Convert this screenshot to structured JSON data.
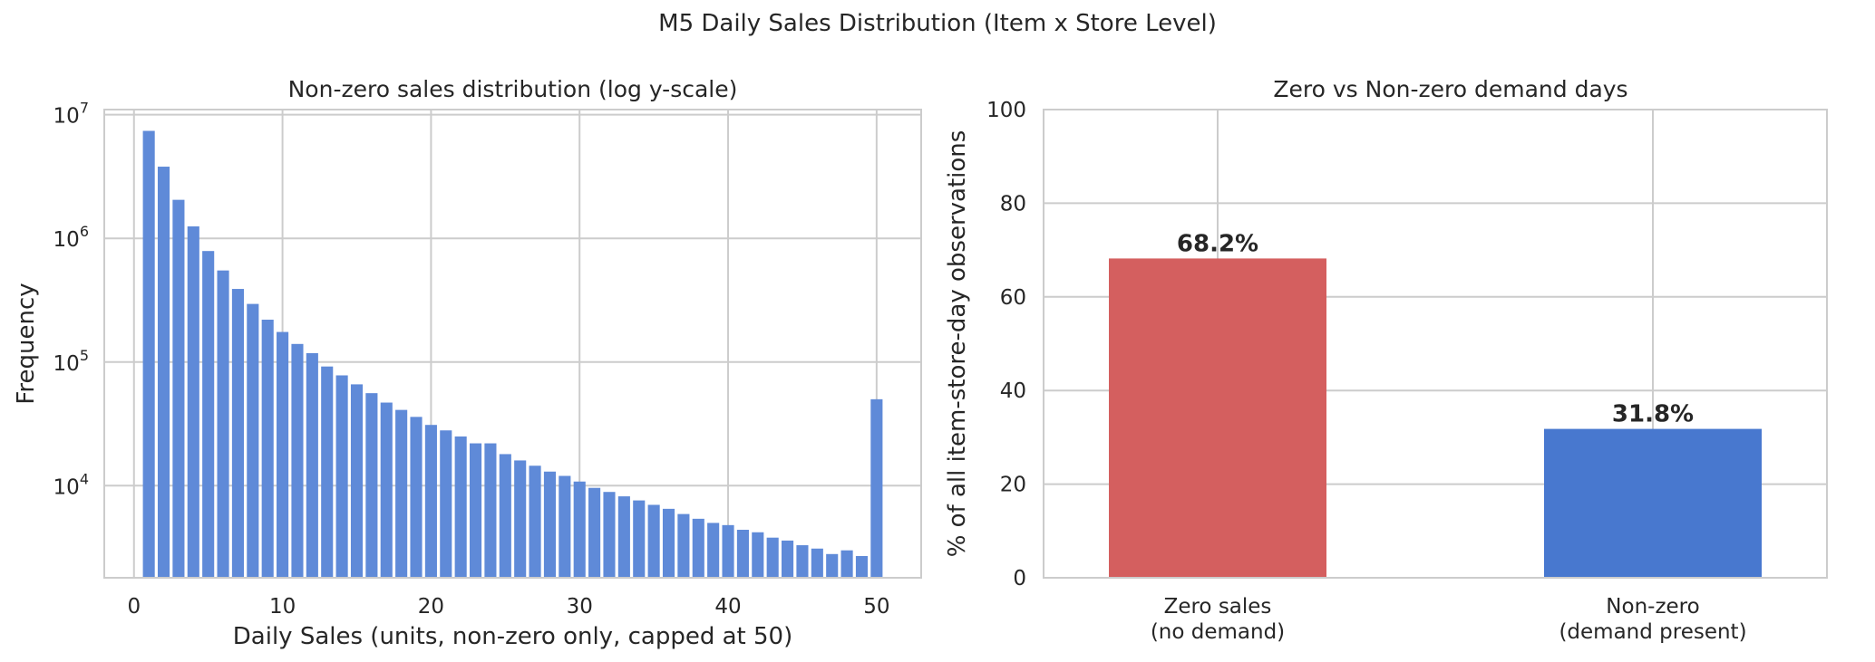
{
  "figure": {
    "title": "M5 Daily Sales Distribution (Item x Store Level)"
  },
  "chart_data": [
    {
      "type": "bar",
      "title": "Non-zero sales distribution (log y-scale)",
      "xlabel": "Daily Sales (units, non-zero only, capped at 50)",
      "ylabel": "Frequency",
      "yscale": "log",
      "xlim": [
        -2,
        53
      ],
      "ylim": [
        1800,
        11000000
      ],
      "xticks": [
        0,
        10,
        20,
        30,
        40,
        50
      ],
      "xtick_labels": [
        "0",
        "10",
        "20",
        "30",
        "40",
        "50"
      ],
      "yticks": [
        10000,
        100000,
        1000000,
        10000000
      ],
      "ytick_labels": [
        {
          "base": "10",
          "exp": "4"
        },
        {
          "base": "10",
          "exp": "5"
        },
        {
          "base": "10",
          "exp": "6"
        },
        {
          "base": "10",
          "exp": "7"
        }
      ],
      "grid": true,
      "color": "#5f8ad8",
      "x": [
        1,
        2,
        3,
        4,
        5,
        6,
        7,
        8,
        9,
        10,
        11,
        12,
        13,
        14,
        15,
        16,
        17,
        18,
        19,
        20,
        21,
        22,
        23,
        24,
        25,
        26,
        27,
        28,
        29,
        30,
        31,
        32,
        33,
        34,
        35,
        36,
        37,
        38,
        39,
        40,
        41,
        42,
        43,
        44,
        45,
        46,
        47,
        48,
        49,
        50
      ],
      "values": [
        7400000,
        3800000,
        2050000,
        1250000,
        790000,
        550000,
        390000,
        295000,
        220000,
        175000,
        140000,
        118000,
        92000,
        78000,
        66000,
        56000,
        47000,
        41000,
        36000,
        31000,
        28000,
        25000,
        22000,
        22000,
        18000,
        16000,
        14500,
        13000,
        12000,
        10800,
        9600,
        8900,
        8200,
        7600,
        7000,
        6500,
        5900,
        5400,
        5000,
        4800,
        4400,
        4200,
        3800,
        3600,
        3300,
        3100,
        2800,
        3000,
        2700,
        50000
      ]
    },
    {
      "type": "bar",
      "title": "Zero vs Non-zero demand days",
      "xlabel": "",
      "ylabel": "% of all item-store-day observations",
      "ylim": [
        0,
        100
      ],
      "yticks": [
        0,
        20,
        40,
        60,
        80,
        100
      ],
      "grid": true,
      "categories": [
        {
          "line1": "Zero sales",
          "line2": "(no demand)"
        },
        {
          "line1": "Non-zero",
          "line2": "(demand present)"
        }
      ],
      "values": [
        68.2,
        31.8
      ],
      "value_labels": [
        "68.2%",
        "31.8%"
      ],
      "colors": [
        "#d45f5f",
        "#4878cf"
      ]
    }
  ]
}
